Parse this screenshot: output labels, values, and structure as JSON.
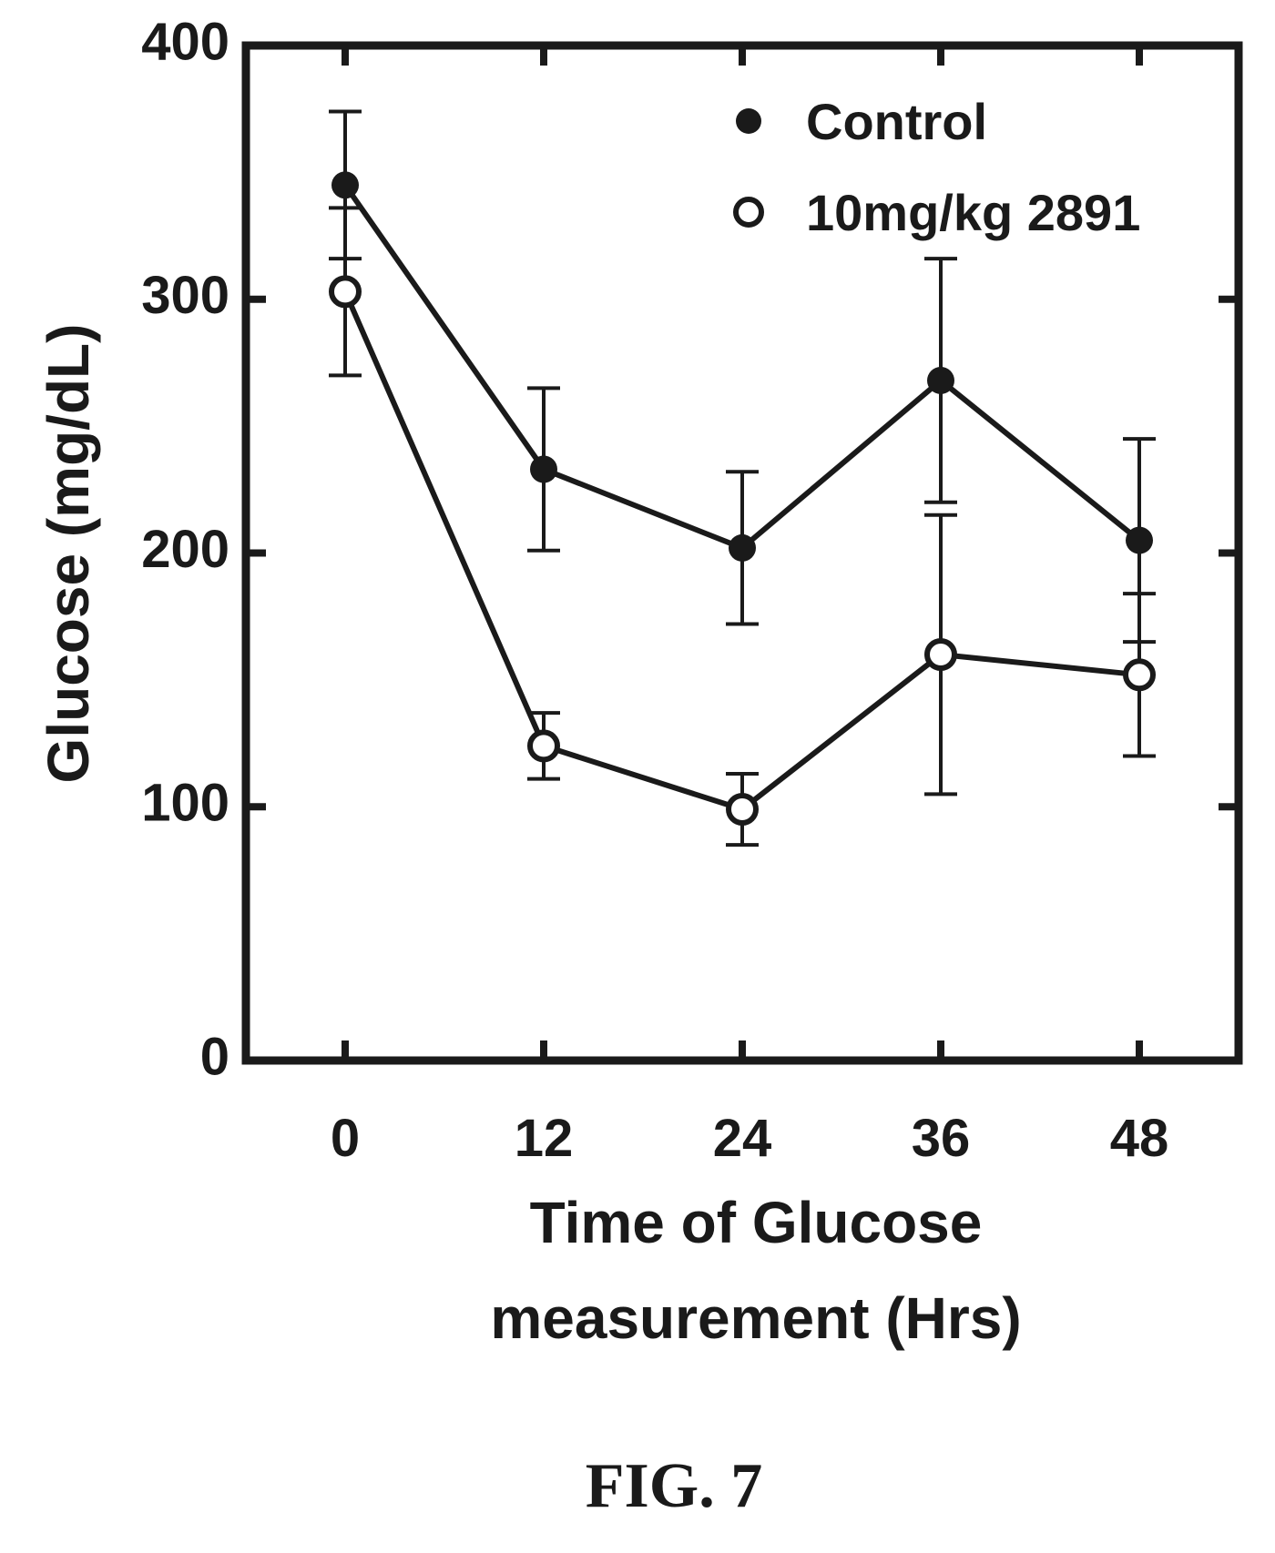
{
  "chart_data": {
    "type": "line",
    "x": [
      0,
      12,
      24,
      36,
      48
    ],
    "xlim": [
      -6,
      54
    ],
    "ylim": [
      0,
      400
    ],
    "xticks": [
      "0",
      "12",
      "24",
      "36",
      "48"
    ],
    "yticks": [
      "0",
      "100",
      "200",
      "300",
      "400"
    ],
    "xlabel_line1": "Time of Glucose",
    "xlabel_line2": "measurement (Hrs)",
    "ylabel": "Glucose (mg/dL)",
    "legend_position": "top-right",
    "grid": false,
    "series": [
      {
        "name": "Control",
        "marker": "filled-circle",
        "values": [
          345,
          233,
          202,
          268,
          205
        ],
        "errors": [
          29,
          32,
          30,
          48,
          40
        ]
      },
      {
        "name": "10mg/kg 2891",
        "marker": "open-circle",
        "values": [
          303,
          124,
          99,
          160,
          152
        ],
        "errors": [
          33,
          13,
          14,
          55,
          32
        ]
      }
    ],
    "colors": {
      "line": "#1a1a1a",
      "background": "#ffffff"
    }
  },
  "caption": "FIG. 7"
}
